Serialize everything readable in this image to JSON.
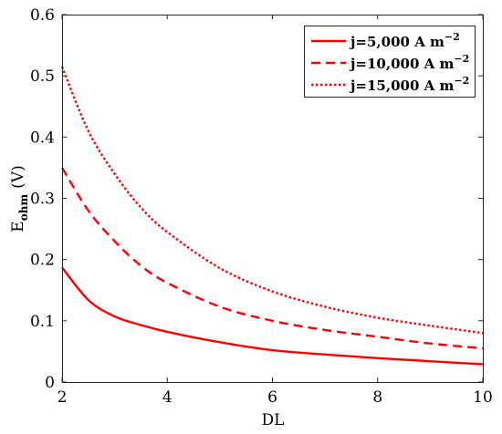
{
  "chart_data": {
    "type": "line",
    "xlabel": "DL",
    "ylabel": {
      "base": "E",
      "sub": "ohm",
      "rest": "(V)"
    },
    "xlim": [
      2,
      10
    ],
    "ylim": [
      0,
      0.6
    ],
    "xticks": [
      2,
      4,
      6,
      8,
      10
    ],
    "xtick_labels": [
      "2",
      "4",
      "6",
      "8",
      "10"
    ],
    "yticks": [
      0,
      0.1,
      0.2,
      0.3,
      0.4,
      0.5,
      0.6
    ],
    "ytick_labels": [
      "0",
      "0.1",
      "0.2",
      "0.3",
      "0.4",
      "0.5",
      "0.6"
    ],
    "grid": false,
    "legend_position": "top-right",
    "series": [
      {
        "name": "j=5,000 A m",
        "name_sup": "−2",
        "style": "solid",
        "color": "#ff0000",
        "x": [
          2,
          2.5,
          3,
          3.5,
          4,
          5,
          6,
          7,
          8,
          9,
          10
        ],
        "y": [
          0.187,
          0.134,
          0.107,
          0.093,
          0.082,
          0.065,
          0.052,
          0.045,
          0.039,
          0.034,
          0.029
        ]
      },
      {
        "name": "j=10,000 A m",
        "name_sup": "−2",
        "style": "dashed",
        "color": "#ff0000",
        "x": [
          2,
          2.5,
          3,
          3.5,
          4,
          5,
          6,
          7,
          8,
          9,
          10
        ],
        "y": [
          0.35,
          0.28,
          0.23,
          0.19,
          0.162,
          0.123,
          0.1,
          0.085,
          0.074,
          0.063,
          0.055
        ]
      },
      {
        "name": "j=15,000 A m",
        "name_sup": "−2",
        "style": "dotted",
        "color": "#ff0000",
        "x": [
          2,
          2.5,
          3,
          3.5,
          4,
          5,
          6,
          7,
          8,
          9,
          10
        ],
        "y": [
          0.515,
          0.41,
          0.34,
          0.285,
          0.245,
          0.186,
          0.148,
          0.123,
          0.105,
          0.092,
          0.08
        ]
      }
    ]
  }
}
